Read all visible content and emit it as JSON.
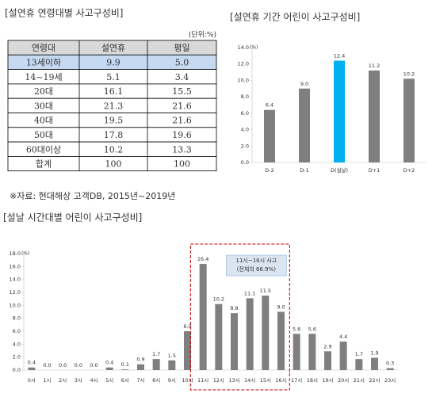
{
  "table": {
    "title": "[설연휴 연령대별 사고구성비]",
    "unit": "(단위:%)",
    "header": [
      "연령대",
      "설연휴",
      "평일"
    ],
    "rows": [
      [
        "13세이하",
        "9.9",
        "5.0"
      ],
      [
        "14~19세",
        "5.1",
        "3.4"
      ],
      [
        "20대",
        "16.1",
        "15.5"
      ],
      [
        "30대",
        "21.3",
        "21.6"
      ],
      [
        "40대",
        "19.5",
        "21.6"
      ],
      [
        "50대",
        "17.8",
        "19.6"
      ],
      [
        "60대이상",
        "10.2",
        "13.3"
      ],
      [
        "합계",
        "100",
        "100"
      ]
    ],
    "note": "※자료: 현대해상 고객DB, 2015년~2019년"
  },
  "chart_data": [
    {
      "type": "bar",
      "title": "[설연휴 기간 어린이 사고구성비]",
      "y_unit": "(%)",
      "categories": [
        "D-2",
        "D-1",
        "D(설날)",
        "D+1",
        "D+2"
      ],
      "values": [
        6.4,
        9.0,
        12.4,
        11.2,
        10.2
      ],
      "value_labels": [
        "6.4",
        "9.0",
        "12.4",
        "11.2",
        "10.2"
      ],
      "colors": [
        "#7f7f7f",
        "#7f7f7f",
        "#00b0f0",
        "#7f7f7f",
        "#7f7f7f"
      ],
      "ylim": [
        0,
        14
      ],
      "yticks": [
        {
          "value": 0,
          "label": "0.0"
        },
        {
          "value": 2,
          "label": "2.0"
        },
        {
          "value": 4,
          "label": "4.0"
        },
        {
          "value": 6,
          "label": "6.0"
        },
        {
          "value": 8,
          "label": "8.0"
        },
        {
          "value": 10,
          "label": "10.0"
        },
        {
          "value": 12,
          "label": "12.0"
        },
        {
          "value": 14,
          "label": "14.0"
        }
      ]
    },
    {
      "type": "bar",
      "title": "[설날 시간대별 어린이 사고구성비]",
      "y_unit": "(%)",
      "categories": [
        "0시",
        "1시",
        "2시",
        "3시",
        "4시",
        "5시",
        "6시",
        "7시",
        "8시",
        "9시",
        "10시",
        "11시",
        "12시",
        "13시",
        "14시",
        "15시",
        "16시",
        "17시",
        "18시",
        "19시",
        "20시",
        "21시",
        "22시",
        "23시"
      ],
      "values": [
        0.4,
        0.0,
        0.0,
        0.0,
        0.0,
        0.4,
        0.1,
        0.9,
        1.7,
        1.5,
        6.0,
        16.4,
        10.2,
        8.8,
        11.1,
        11.5,
        9.0,
        5.6,
        5.6,
        2.9,
        4.4,
        1.7,
        1.9,
        0.3
      ],
      "value_labels": [
        "0.4",
        "0.0",
        "0.0",
        "0.0",
        "0.0",
        "0.4",
        "0.1",
        "0.9",
        "1.7",
        "1.5",
        "6.0",
        "16.4",
        "10.2",
        "8.8",
        "11.1",
        "11.5",
        "9.0",
        "5.6",
        "5.6",
        "2.9",
        "4.4",
        "1.7",
        "1.9",
        "0.3"
      ],
      "color": "#7f7f7f",
      "ylim": [
        0,
        18
      ],
      "yticks": [
        {
          "value": 0,
          "label": "0.0"
        },
        {
          "value": 2,
          "label": "2.0"
        },
        {
          "value": 4,
          "label": "4.0"
        },
        {
          "value": 6,
          "label": "6.0"
        },
        {
          "value": 8,
          "label": "8.0"
        },
        {
          "value": 10,
          "label": "10.0"
        },
        {
          "value": 12,
          "label": "12.0"
        },
        {
          "value": 14,
          "label": "14.0"
        },
        {
          "value": 16,
          "label": "16.0"
        },
        {
          "value": 18,
          "label": "18.0"
        }
      ],
      "annotation": [
        "11시~16시 사고",
        "(전체의 66.9%)"
      ]
    }
  ]
}
